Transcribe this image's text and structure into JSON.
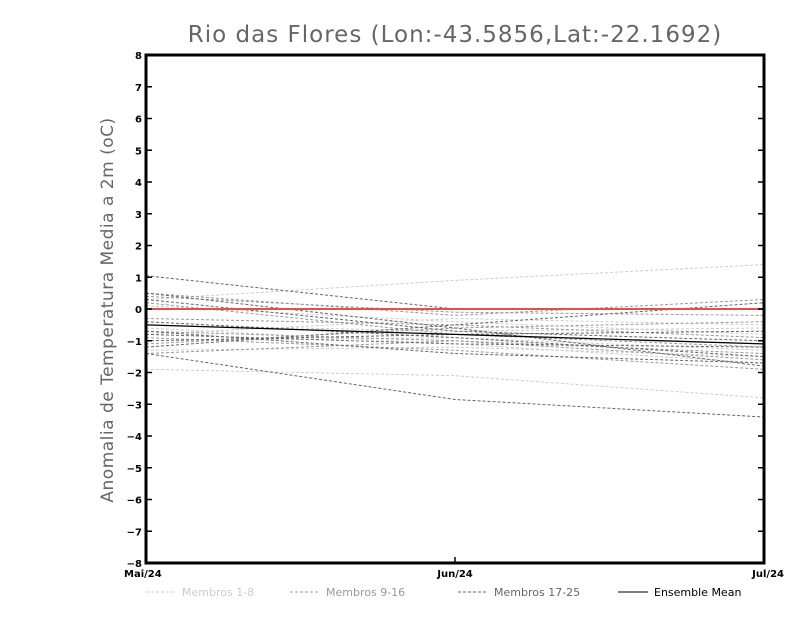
{
  "chart_data": {
    "type": "line",
    "title": "Rio das Flores (Lon:-43.5856,Lat:-22.1692)",
    "xlabel": "",
    "ylabel": "Anomalia de Temperatura Media a 2m (oC)",
    "categories": [
      "Mai/24",
      "Jun/24",
      "Jul/24"
    ],
    "ylim": [
      -8,
      8
    ],
    "yticks": [
      "8",
      "7",
      "6",
      "5",
      "4",
      "3",
      "2",
      "1",
      "0",
      "-1",
      "-2",
      "-3",
      "-4",
      "-5",
      "-6",
      "-7",
      "-8"
    ],
    "reference_line": {
      "value": 0,
      "color": "#e05050"
    },
    "series": [
      {
        "name": "Membro 1",
        "group": "Membros 1-8",
        "values": [
          0.3,
          0.9,
          1.4
        ]
      },
      {
        "name": "Membro 2",
        "group": "Membros 1-8",
        "values": [
          -1.9,
          -2.1,
          -2.8
        ]
      },
      {
        "name": "Membro 3",
        "group": "Membros 1-8",
        "values": [
          -0.8,
          -0.3,
          -0.5
        ]
      },
      {
        "name": "Membro 4",
        "group": "Membros 1-8",
        "values": [
          -1.3,
          -1.2,
          -1.5
        ]
      },
      {
        "name": "Membro 5",
        "group": "Membros 1-8",
        "values": [
          -0.5,
          -0.7,
          -0.6
        ]
      },
      {
        "name": "Membro 6",
        "group": "Membros 1-8",
        "values": [
          0.1,
          -0.4,
          -0.8
        ]
      },
      {
        "name": "Membro 7",
        "group": "Membros 1-8",
        "values": [
          -0.6,
          -1.1,
          -1.7
        ]
      },
      {
        "name": "Membro 8",
        "group": "Membros 1-8",
        "values": [
          -1.0,
          -0.9,
          -1.3
        ]
      },
      {
        "name": "Membro 9",
        "group": "Membros 9-16",
        "values": [
          0.5,
          -0.2,
          0.3
        ]
      },
      {
        "name": "Membro 10",
        "group": "Membros 9-16",
        "values": [
          -0.7,
          -1.0,
          -1.6
        ]
      },
      {
        "name": "Membro 11",
        "group": "Membros 9-16",
        "values": [
          -1.1,
          -0.6,
          -0.4
        ]
      },
      {
        "name": "Membro 12",
        "group": "Membros 9-16",
        "values": [
          0.2,
          -0.8,
          -1.2
        ]
      },
      {
        "name": "Membro 13",
        "group": "Membros 9-16",
        "values": [
          -0.9,
          -1.3,
          -1.9
        ]
      },
      {
        "name": "Membro 14",
        "group": "Membros 9-16",
        "values": [
          -0.3,
          -0.5,
          -0.9
        ]
      },
      {
        "name": "Membro 15",
        "group": "Membros 9-16",
        "values": [
          -1.4,
          -1.0,
          -1.4
        ]
      },
      {
        "name": "Membro 16",
        "group": "Membros 9-16",
        "values": [
          0.4,
          -0.1,
          -0.2
        ]
      },
      {
        "name": "Membro 17",
        "group": "Membros 17-25",
        "values": [
          1.05,
          0.0,
          0.0
        ]
      },
      {
        "name": "Membro 18",
        "group": "Membros 17-25",
        "values": [
          -1.4,
          -2.85,
          -3.4
        ]
      },
      {
        "name": "Membro 19",
        "group": "Membros 17-25",
        "values": [
          0.5,
          -0.6,
          -1.8
        ]
      },
      {
        "name": "Membro 20",
        "group": "Membros 17-25",
        "values": [
          -0.8,
          -1.1,
          -1.2
        ]
      },
      {
        "name": "Membro 21",
        "group": "Membros 17-25",
        "values": [
          0.3,
          -0.7,
          -1.0
        ]
      },
      {
        "name": "Membro 22",
        "group": "Membros 17-25",
        "values": [
          -1.2,
          -0.5,
          0.2
        ]
      },
      {
        "name": "Membro 23",
        "group": "Membros 17-25",
        "values": [
          -0.4,
          -0.9,
          -1.5
        ]
      },
      {
        "name": "Membro 24",
        "group": "Membros 17-25",
        "values": [
          -0.7,
          -1.4,
          -1.7
        ]
      },
      {
        "name": "Membro 25",
        "group": "Membros 17-25",
        "values": [
          -1.0,
          -0.8,
          -0.7
        ]
      },
      {
        "name": "Ensemble Mean",
        "group": "Ensemble Mean",
        "values": [
          -0.5,
          -0.8,
          -1.1
        ]
      }
    ],
    "legend": [
      {
        "label": "Membros 1-8",
        "color": "#cccccc",
        "dash": "3,2"
      },
      {
        "label": "Membros 9-16",
        "color": "#999999",
        "dash": "3,2"
      },
      {
        "label": "Membros 17-25",
        "color": "#666666",
        "dash": "3,2"
      },
      {
        "label": "Ensemble Mean",
        "color": "#000000",
        "dash": ""
      }
    ],
    "legend_position": "bottom"
  }
}
